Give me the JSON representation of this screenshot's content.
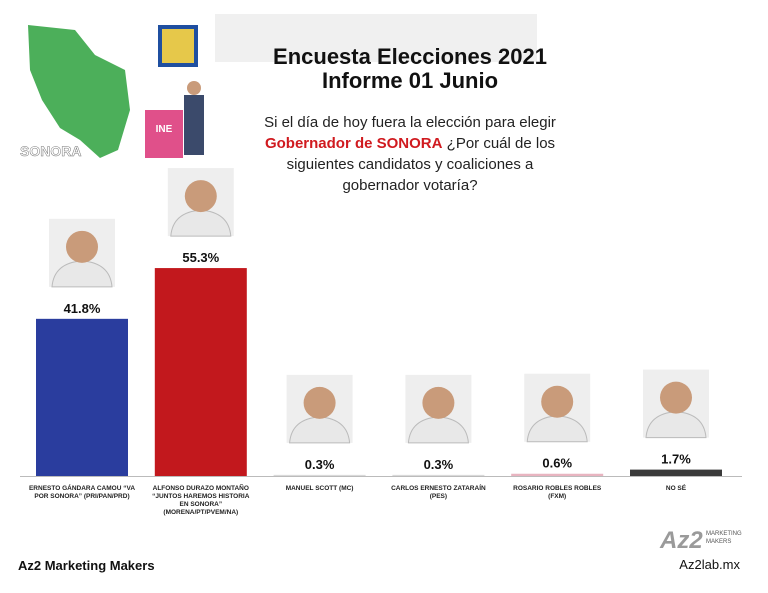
{
  "chart_data": {
    "type": "bar",
    "title": "Encuesta Elecciones 2021",
    "subtitle": "Informe 01 Junio",
    "question": {
      "line1": "Si el día de hoy fuera la elección para elegir",
      "highlight": "Gobernador de SONORA",
      "line2": "¿Por cuál de los",
      "line3": "siguientes candidatos y coaliciones a",
      "line4": "gobernador votaría?"
    },
    "map_label": "SONORA",
    "ballot_label": "INE",
    "categories": [
      [
        "ERNESTO GÁNDARA CAMOU “VA",
        "POR SONORA” (PRI/PAN/PRD)"
      ],
      [
        "ALFONSO DURAZO MONTAÑO",
        "“JUNTOS HAREMOS HISTORIA",
        "EN SONORA”",
        "(MORENA/PT/PVEM/NA)"
      ],
      [
        "MANUEL SCOTT (MC)"
      ],
      [
        "CARLOS ERNESTO ZATARAÍN",
        "(PES)"
      ],
      [
        "ROSARIO ROBLES ROBLES",
        "(FXM)"
      ],
      [
        "NO SÉ"
      ]
    ],
    "values": [
      41.8,
      55.3,
      0.3,
      0.3,
      0.6,
      1.7
    ],
    "value_labels": [
      "41.8%",
      "55.3%",
      "0.3%",
      "0.3%",
      "0.6%",
      "1.7%"
    ],
    "colors": [
      "#2a3d9e",
      "#c2181d",
      "#d9d9d9",
      "#d9d9d9",
      "#e8b4c0",
      "#3a3a3a"
    ],
    "footer_left": "Az2 Marketing Makers",
    "footer_right": "Az2lab.mx",
    "logo": {
      "mark": "Az2",
      "line1": "MARKETING",
      "line2": "MAKERS"
    }
  }
}
